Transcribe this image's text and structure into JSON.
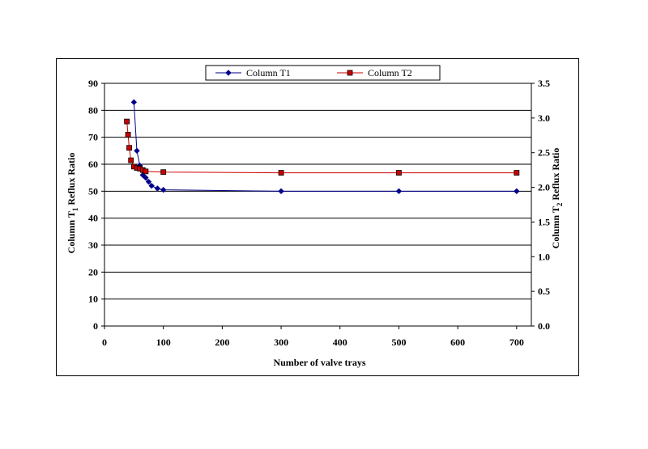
{
  "chart_data": {
    "type": "line",
    "xlabel": "Number of valve trays",
    "ylabel_left": {
      "main": "Column T",
      "sub": "1",
      "rest": " Reflux Ratio"
    },
    "ylabel_right": {
      "main": "Column T",
      "sub": "2",
      "rest": " Reflux Ratio"
    },
    "xlim": [
      0,
      725
    ],
    "x_ticks": [
      0,
      100,
      200,
      300,
      400,
      500,
      600,
      700
    ],
    "ylim_left": [
      0,
      90
    ],
    "y_ticks_left": [
      0,
      10,
      20,
      30,
      40,
      50,
      60,
      70,
      80,
      90
    ],
    "ylim_right": [
      0,
      3.5
    ],
    "y_ticks_right": [
      "0.0",
      "0.5",
      "1.0",
      "1.5",
      "2.0",
      "2.5",
      "3.0",
      "3.5"
    ],
    "grid": "horizontal",
    "legend_position": "top",
    "series": [
      {
        "name": "Column T1",
        "axis": "left",
        "color": "#00008B",
        "marker": "diamond",
        "x": [
          50,
          55,
          60,
          65,
          70,
          75,
          80,
          90,
          100,
          300,
          500,
          700
        ],
        "y": [
          83,
          65,
          59.5,
          56,
          55,
          53.5,
          52,
          51,
          50.5,
          50,
          50,
          50
        ]
      },
      {
        "name": "Column T2",
        "axis": "right",
        "color": "#CC0000",
        "marker": "square",
        "x": [
          38,
          40,
          42,
          45,
          50,
          55,
          60,
          65,
          70,
          100,
          300,
          500,
          700
        ],
        "y": [
          2.95,
          2.76,
          2.57,
          2.39,
          2.3,
          2.28,
          2.27,
          2.25,
          2.23,
          2.22,
          2.21,
          2.21,
          2.21
        ]
      }
    ]
  }
}
